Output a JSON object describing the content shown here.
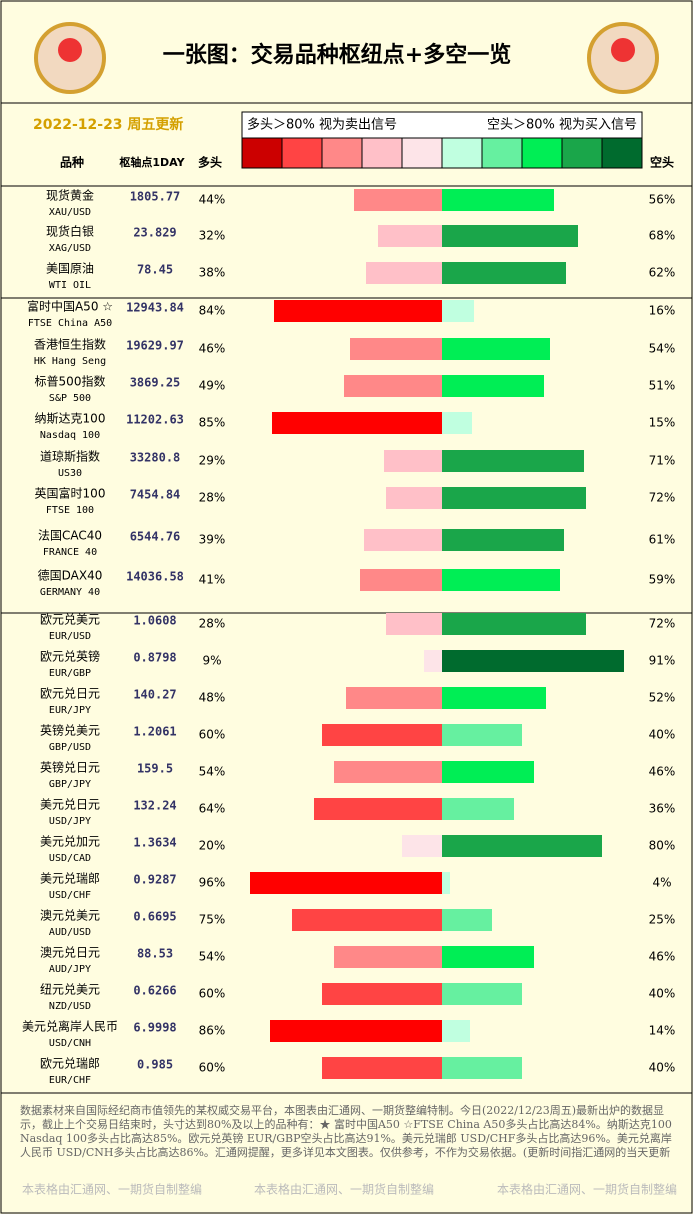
{
  "chart_data": {
    "type": "diverging-bar",
    "title": "一张图：交易品种枢纽点+多空一览",
    "subtitle": "2022-12-23 周五更新",
    "legend_left": "多头＞80% 视为卖出信号",
    "legend_right": "空头＞80% 视为买入信号",
    "legend_colors": [
      "#cc0000",
      "#ff4444",
      "#ff8888",
      "#ffc0c8",
      "#fde4e8",
      "#c0ffe0",
      "#66f0a0",
      "#00ee55",
      "#1aa64a",
      "#006b2e"
    ],
    "columns": [
      "品种",
      "枢轴点1DAY",
      "多头",
      "空头"
    ],
    "xlim": [
      0,
      100
    ],
    "categories": [
      "现货黄金",
      "现货白银",
      "美国原油",
      "富时中国A50 ☆",
      "香港恒生指数",
      "标普500指数",
      "纳斯达克100",
      "道琼斯指数",
      "英国富时100",
      "法国CAC40",
      "德国DAX40",
      "欧元兑美元",
      "欧元兑英镑",
      "欧元兑日元",
      "英镑兑美元",
      "英镑兑日元",
      "美元兑日元",
      "美元兑加元",
      "美元兑瑞郎",
      "澳元兑美元",
      "澳元兑日元",
      "纽元兑美元",
      "美元兑离岸人民币",
      "欧元兑瑞郎"
    ],
    "codes": [
      "XAU/USD",
      "XAG/USD",
      "WTI OIL",
      "FTSE China A50",
      "HK Hang Seng",
      "S&P 500",
      "Nasdaq 100",
      "US30",
      "FTSE 100",
      "FRANCE 40",
      "GERMANY 40",
      "EUR/USD",
      "EUR/GBP",
      "EUR/JPY",
      "GBP/USD",
      "GBP/JPY",
      "USD/JPY",
      "USD/CAD",
      "USD/CHF",
      "AUD/USD",
      "AUD/JPY",
      "NZD/USD",
      "USD/CNH",
      "EUR/CHF"
    ],
    "pivots": [
      1805.77,
      23.829,
      78.45,
      12943.84,
      19629.97,
      3869.25,
      11202.63,
      33280.8,
      7454.84,
      6544.76,
      14036.58,
      1.0608,
      0.8798,
      140.27,
      1.2061,
      159.5,
      132.24,
      1.3634,
      0.9287,
      0.6695,
      88.53,
      0.6266,
      6.9998,
      0.985
    ],
    "series": [
      {
        "name": "多头",
        "values": [
          44,
          32,
          38,
          84,
          46,
          49,
          85,
          29,
          28,
          39,
          41,
          28,
          9,
          48,
          60,
          54,
          64,
          20,
          96,
          75,
          54,
          60,
          86,
          60
        ],
        "value_labels": [
          "44%",
          "32%",
          "38%",
          "84%",
          "46%",
          "49%",
          "85%",
          "29%",
          "28%",
          "39%",
          "41%",
          "28%",
          "9%",
          "48%",
          "60%",
          "54%",
          "64%",
          "20%",
          "96%",
          "75%",
          "54%",
          "60%",
          "86%",
          "60%"
        ],
        "colors": [
          "#ff8888",
          "#ffc0c8",
          "#ffc0c8",
          "#ff0000",
          "#ff8888",
          "#ff8888",
          "#ff0000",
          "#ffc0c8",
          "#ffc0c8",
          "#ffc0c8",
          "#ff8888",
          "#ffc0c8",
          "#fde4e8",
          "#ff8888",
          "#ff4444",
          "#ff8888",
          "#ff4444",
          "#fde4e8",
          "#ff0000",
          "#ff4444",
          "#ff8888",
          "#ff4444",
          "#ff0000",
          "#ff4444"
        ]
      },
      {
        "name": "空头",
        "values": [
          56,
          68,
          62,
          16,
          54,
          51,
          15,
          71,
          72,
          61,
          59,
          72,
          91,
          52,
          40,
          46,
          36,
          80,
          4,
          25,
          46,
          40,
          14,
          40
        ],
        "value_labels": [
          "56%",
          "68%",
          "62%",
          "16%",
          "54%",
          "51%",
          "15%",
          "71%",
          "72%",
          "61%",
          "59%",
          "72%",
          "91%",
          "52%",
          "40%",
          "46%",
          "36%",
          "80%",
          "4%",
          "25%",
          "46%",
          "40%",
          "14%",
          "40%"
        ],
        "colors": [
          "#00ee55",
          "#1aa64a",
          "#1aa64a",
          "#c0ffe0",
          "#00ee55",
          "#00ee55",
          "#c0ffe0",
          "#1aa64a",
          "#1aa64a",
          "#1aa64a",
          "#00ee55",
          "#1aa64a",
          "#006b2e",
          "#00ee55",
          "#66f0a0",
          "#00ee55",
          "#66f0a0",
          "#1aa64a",
          "#c0ffe0",
          "#66f0a0",
          "#00ee55",
          "#66f0a0",
          "#c0ffe0",
          "#66f0a0"
        ]
      }
    ],
    "footer_text": "数据素材来自国际经纪商市值领先的某权威交易平台，本图表由汇通网、一期货整编特制。今日(2022/12/23周五)最新出炉的数据显示，截止上个交易日结束时，头寸达到80%及以上的品种有：★ 富时中国A50 ☆FTSE China A50多头占比高达84%。纳斯达克100 Nasdaq 100多头占比高达85%。欧元兑英镑 EUR/GBP空头占比高达91%。美元兑瑞郎 USD/CHF多头占比高达96%。美元兑离岸人民币 USD/CNH多头占比高达86%。汇通网提醒，更多详见本文图表。仅供参考，不作为交易依据。(更新时间指汇通网的当天更新日期，统计的是隔天交易日的数据，比如本周三统计的是截止本周二交易结束时的数据。该数据比CFTC每",
    "watermark": "本表格由汇通网、一期货自制整编"
  }
}
